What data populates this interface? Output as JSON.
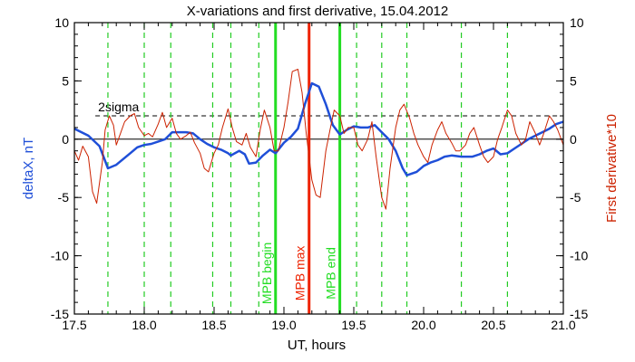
{
  "chart_data": {
    "type": "line",
    "title": "X-variations and first derivative, 15.04.2012",
    "xlabel": "UT, hours",
    "ylabel_left": "deltaX, nT",
    "ylabel_right": "First derivative*10",
    "xlim": [
      17.5,
      21.0
    ],
    "ylim": [
      -15,
      10
    ],
    "x_ticks": [
      17.5,
      18.0,
      18.5,
      19.0,
      19.5,
      20.0,
      20.5,
      21.0
    ],
    "x_tick_labels": [
      "17.5",
      "18.0",
      "18.5",
      "19.0",
      "19.5",
      "20.0",
      "20.5",
      "21.0"
    ],
    "y_ticks": [
      -15,
      -10,
      -5,
      0,
      5,
      10
    ],
    "y_tick_labels": [
      "-15",
      "-10",
      "-5",
      "0",
      "5",
      "10"
    ],
    "colors": {
      "deltaX": "#1f4fd8",
      "derivative": "#cc2200",
      "mpb_begin_end": "#22dd22",
      "mpb_max": "#ee2200",
      "dashed_green": "#22cc22"
    },
    "sigma": {
      "label": "2sigma",
      "value": 2.0
    },
    "zero_line": 0,
    "dashed_verticals_x": [
      17.74,
      18.0,
      18.19,
      18.49,
      18.62,
      18.82,
      19.52,
      19.7,
      19.88,
      20.27,
      20.6
    ],
    "markers": [
      {
        "x": 18.94,
        "label": "MPB begin",
        "color": "#22dd22"
      },
      {
        "x": 19.18,
        "label": "MPB max",
        "color": "#ee2200"
      },
      {
        "x": 19.4,
        "label": "MPB end",
        "color": "#22dd22"
      }
    ],
    "series": [
      {
        "key": "deltaX",
        "values_x": [
          17.5,
          17.6,
          17.68,
          17.74,
          17.8,
          17.9,
          17.95,
          18.0,
          18.05,
          18.1,
          18.15,
          18.2,
          18.25,
          18.3,
          18.35,
          18.4,
          18.45,
          18.5,
          18.55,
          18.6,
          18.62,
          18.68,
          18.72,
          18.75,
          18.8,
          18.85,
          18.9,
          18.94,
          19.0,
          19.05,
          19.1,
          19.15,
          19.2,
          19.25,
          19.3,
          19.35,
          19.4,
          19.45,
          19.5,
          19.55,
          19.6,
          19.65,
          19.7,
          19.75,
          19.8,
          19.85,
          19.88,
          19.95,
          20.0,
          20.05,
          20.1,
          20.15,
          20.2,
          20.27,
          20.35,
          20.4,
          20.45,
          20.5,
          20.55,
          20.6,
          20.65,
          20.7,
          20.75,
          20.8,
          20.85,
          20.9,
          20.95,
          21.0
        ],
        "values_y": [
          0.9,
          0.3,
          -0.6,
          -2.5,
          -2.2,
          -1.2,
          -0.7,
          -0.5,
          -0.4,
          -0.2,
          0.0,
          0.6,
          0.6,
          0.6,
          0.5,
          0.0,
          -0.4,
          -0.7,
          -0.9,
          -1.2,
          -1.4,
          -1.0,
          -1.3,
          -2.1,
          -2.0,
          -1.4,
          -0.9,
          -1.2,
          -0.3,
          0.2,
          0.9,
          3.0,
          4.8,
          4.5,
          3.0,
          1.2,
          0.4,
          0.8,
          1.1,
          1.0,
          1.0,
          1.2,
          0.6,
          0.0,
          -1.0,
          -2.5,
          -3.1,
          -2.8,
          -2.3,
          -2.0,
          -1.8,
          -1.5,
          -1.4,
          -1.5,
          -1.5,
          -1.3,
          -1.0,
          -0.8,
          -1.3,
          -1.2,
          -0.8,
          -0.4,
          0.0,
          0.3,
          0.6,
          0.9,
          1.3,
          1.5
        ]
      },
      {
        "key": "derivative",
        "values_x": [
          17.5,
          17.53,
          17.56,
          17.6,
          17.63,
          17.66,
          17.7,
          17.72,
          17.75,
          17.78,
          17.8,
          17.83,
          17.86,
          17.9,
          17.93,
          17.96,
          18.0,
          18.03,
          18.06,
          18.1,
          18.13,
          18.16,
          18.2,
          18.23,
          18.26,
          18.3,
          18.33,
          18.36,
          18.4,
          18.43,
          18.46,
          18.5,
          18.53,
          18.56,
          18.6,
          18.63,
          18.66,
          18.7,
          18.73,
          18.76,
          18.8,
          18.83,
          18.86,
          18.9,
          18.93,
          18.96,
          19.0,
          19.03,
          19.06,
          19.1,
          19.13,
          19.16,
          19.18,
          19.2,
          19.23,
          19.26,
          19.3,
          19.33,
          19.36,
          19.4,
          19.43,
          19.46,
          19.5,
          19.53,
          19.56,
          19.6,
          19.63,
          19.66,
          19.7,
          19.73,
          19.76,
          19.8,
          19.83,
          19.86,
          19.9,
          19.93,
          19.96,
          20.0,
          20.03,
          20.06,
          20.1,
          20.13,
          20.16,
          20.2,
          20.23,
          20.26,
          20.3,
          20.33,
          20.36,
          20.4,
          20.43,
          20.46,
          20.5,
          20.53,
          20.56,
          20.6,
          20.63,
          20.66,
          20.7,
          20.73,
          20.76,
          20.8,
          20.83,
          20.86,
          20.9,
          20.93,
          20.96,
          21.0
        ],
        "values_y": [
          -1.0,
          -1.8,
          -0.6,
          -1.5,
          -4.5,
          -5.5,
          -2.0,
          0.8,
          2.0,
          1.2,
          -0.5,
          0.5,
          1.5,
          2.0,
          2.2,
          1.0,
          0.3,
          0.5,
          0.2,
          1.3,
          2.3,
          1.0,
          1.8,
          0.5,
          0.0,
          0.3,
          0.6,
          -0.3,
          -1.2,
          -2.5,
          -2.8,
          -1.2,
          -0.5,
          1.0,
          2.6,
          1.0,
          -0.2,
          -0.5,
          0.5,
          -0.7,
          -1.5,
          0.8,
          2.5,
          1.0,
          -1.0,
          -1.0,
          1.0,
          3.2,
          5.8,
          6.0,
          4.0,
          0.5,
          -1.5,
          -3.5,
          -4.8,
          -5.0,
          -1.0,
          0.8,
          2.5,
          2.0,
          0.5,
          1.0,
          1.0,
          -0.5,
          -1.0,
          0.0,
          1.5,
          -1.5,
          -5.0,
          -6.0,
          -2.5,
          1.0,
          2.5,
          3.0,
          1.8,
          0.5,
          -0.5,
          -1.5,
          -2.0,
          -0.5,
          0.8,
          1.5,
          0.5,
          -0.3,
          -1.0,
          -1.0,
          -0.5,
          0.5,
          1.0,
          -0.5,
          -1.5,
          -2.0,
          -1.5,
          0.0,
          1.0,
          2.5,
          2.0,
          0.5,
          -0.5,
          0.0,
          1.5,
          0.5,
          -0.5,
          0.5,
          2.0,
          1.5,
          0.8,
          -0.5
        ]
      }
    ]
  }
}
